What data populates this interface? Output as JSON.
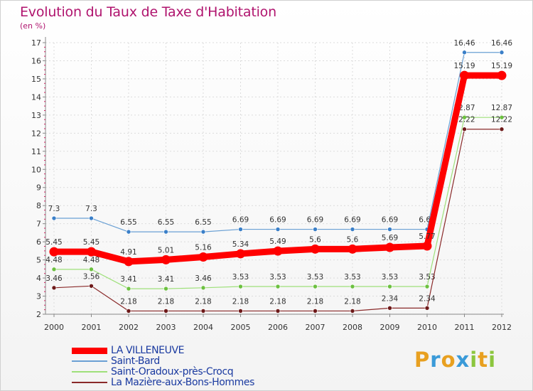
{
  "title": "Evolution du Taux de Taxe d'Habitation",
  "unit_label": "(en %)",
  "logo": {
    "letters": [
      "P",
      "r",
      "o",
      "x",
      "i",
      "t",
      "i"
    ],
    "colors": [
      "#e8a020",
      "#3a9ad8",
      "#e8a020",
      "#3a9ad8",
      "#8cc63e",
      "#e8a020",
      "#8cc63e"
    ]
  },
  "chart_data": {
    "type": "line",
    "title": "Evolution du Taux de Taxe d'Habitation",
    "ylabel": "(en %)",
    "xlabel": "",
    "ylim": [
      2,
      17
    ],
    "yticks": [
      2,
      3,
      4,
      5,
      6,
      7,
      8,
      9,
      10,
      11,
      12,
      13,
      14,
      15,
      16,
      17
    ],
    "categories": [
      "2000",
      "2001",
      "2002",
      "2003",
      "2004",
      "2005",
      "2006",
      "2007",
      "2008",
      "2009",
      "2010",
      "2011",
      "2012"
    ],
    "legend_position": "bottom-left",
    "series": [
      {
        "name": "LA VILLENEUVE",
        "color": "#ff0000",
        "marker_color": "#ff0000",
        "width": 9,
        "values": [
          5.45,
          5.45,
          4.91,
          5.01,
          5.16,
          5.34,
          5.49,
          5.6,
          5.6,
          5.69,
          5.77,
          15.19,
          15.19
        ],
        "labels": [
          "5.45",
          "5.45",
          "4.91",
          "5.01",
          "5.16",
          "5.34",
          "5.49",
          "5.6",
          "5.6",
          "5.69",
          "5.77",
          "15.19",
          "15.19"
        ]
      },
      {
        "name": "Saint-Bard",
        "color": "#6aa0d4",
        "marker_color": "#3a7fc8",
        "width": 1.2,
        "values": [
          7.3,
          7.3,
          6.55,
          6.55,
          6.55,
          6.69,
          6.69,
          6.69,
          6.69,
          6.69,
          6.69,
          16.46,
          16.46
        ],
        "labels": [
          "7.3",
          "7.3",
          "6.55",
          "6.55",
          "6.55",
          "6.69",
          "6.69",
          "6.69",
          "6.69",
          "6.69",
          "6.69",
          "16.46",
          "16.46"
        ]
      },
      {
        "name": "Saint-Oradoux-près-Crocq",
        "color": "#9ee07a",
        "marker_color": "#6cc040",
        "width": 1.2,
        "values": [
          4.48,
          4.48,
          3.41,
          3.41,
          3.46,
          3.53,
          3.53,
          3.53,
          3.53,
          3.53,
          3.53,
          12.87,
          12.87
        ],
        "labels": [
          "4.48",
          "4.48",
          "3.41",
          "3.41",
          "3.46",
          "3.53",
          "3.53",
          "3.53",
          "3.53",
          "3.53",
          "3.53",
          "12.87",
          "12.87"
        ]
      },
      {
        "name": "La Mazière-aux-Bons-Hommes",
        "color": "#8a2a2a",
        "marker_color": "#6e1a1a",
        "width": 1.2,
        "values": [
          3.46,
          3.56,
          2.18,
          2.18,
          2.18,
          2.18,
          2.18,
          2.18,
          2.18,
          2.34,
          2.34,
          12.22,
          12.22
        ],
        "labels": [
          "3.46",
          "3.56",
          "2.18",
          "2.18",
          "2.18",
          "2.18",
          "2.18",
          "2.18",
          "2.18",
          "2.34",
          "2.34",
          "12.22",
          "12.22"
        ]
      }
    ]
  }
}
